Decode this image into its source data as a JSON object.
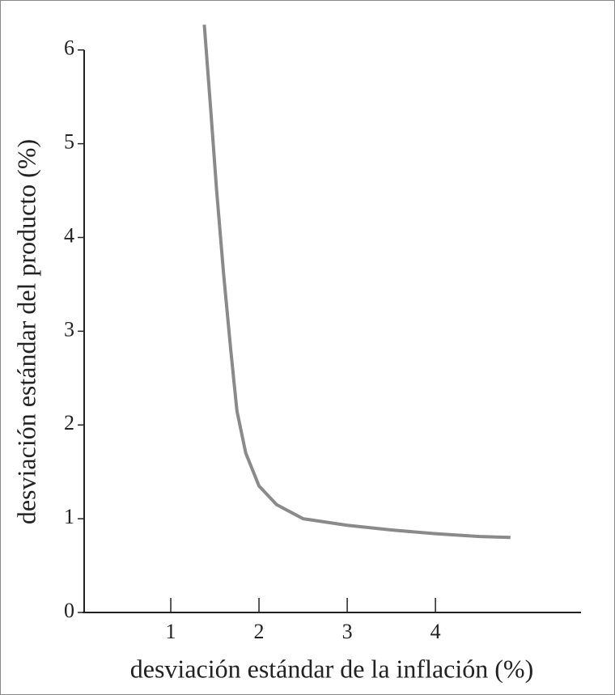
{
  "chart_data": {
    "type": "line",
    "x_label": "desviación estándar de la inflación (%)",
    "y_label": "desviación estándar del producto (%)",
    "xlim": [
      0,
      5.65
    ],
    "ylim": [
      0,
      6.3
    ],
    "xticks": [
      1,
      2,
      3,
      4
    ],
    "yticks": [
      0,
      1,
      2,
      3,
      4,
      5,
      6
    ],
    "series": [
      {
        "color": "#8a8a8a",
        "x": [
          1.38,
          1.45,
          1.52,
          1.6,
          1.68,
          1.75,
          1.85,
          2.0,
          2.2,
          2.5,
          3.0,
          3.5,
          4.0,
          4.5,
          4.85
        ],
        "values": [
          6.27,
          5.4,
          4.5,
          3.6,
          2.8,
          2.15,
          1.7,
          1.35,
          1.15,
          1.0,
          0.93,
          0.88,
          0.84,
          0.81,
          0.8
        ]
      }
    ]
  }
}
